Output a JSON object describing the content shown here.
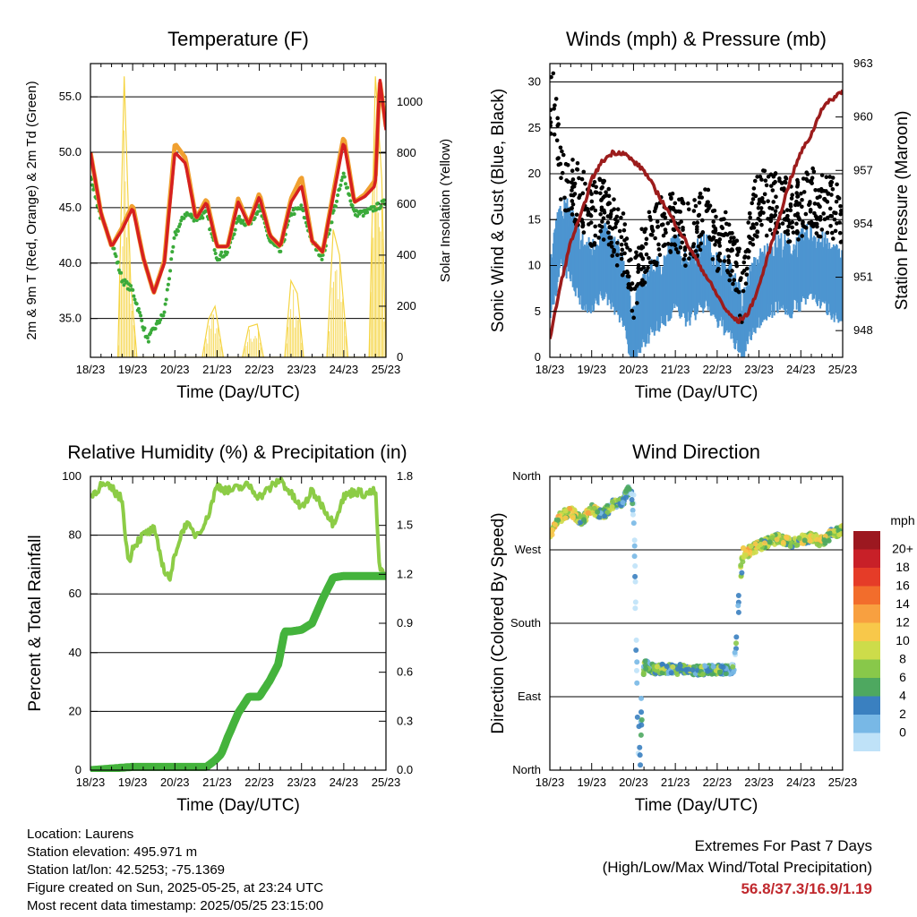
{
  "chart_data": [
    {
      "type": "line",
      "title": "Temperature (F)",
      "xlabel": "Time (Day/UTC)",
      "ylabel": "2m & 9m T (Red, Orange) & 2m Td (Green)",
      "ylabel_right": "Solar Insolation (Yellow)",
      "x_ticks": [
        "18/23",
        "19/23",
        "20/23",
        "21/23",
        "22/23",
        "23/23",
        "24/23",
        "25/23"
      ],
      "y_ticks": [
        "35.0",
        "40.0",
        "45.0",
        "50.0",
        "55.0"
      ],
      "y_tick_values": [
        35,
        40,
        45,
        50,
        55
      ],
      "ylim": [
        31.5,
        58
      ],
      "y2_ticks": [
        "0",
        "200",
        "400",
        "600",
        "800",
        "1000"
      ],
      "y2_tick_values": [
        0,
        200,
        400,
        600,
        800,
        1000
      ],
      "y2lim": [
        0,
        1150
      ],
      "xlim": [
        0,
        7
      ],
      "series": [
        {
          "color": "#d62020",
          "x": [
            0,
            0.25,
            0.5,
            0.75,
            1.0,
            1.25,
            1.5,
            1.75,
            2.0,
            2.25,
            2.5,
            2.75,
            3.0,
            3.25,
            3.5,
            3.75,
            4.0,
            4.25,
            4.5,
            4.75,
            5.0,
            5.25,
            5.5,
            5.75,
            6.0,
            6.25,
            6.5,
            6.75,
            6.85,
            7.0
          ],
          "values": [
            50,
            44.5,
            41.5,
            43,
            45,
            40.5,
            37.3,
            40,
            50,
            49,
            44,
            45.5,
            41.5,
            41.5,
            45.5,
            43.5,
            46,
            42.5,
            41.5,
            45.5,
            47,
            42,
            41,
            46,
            51,
            45.5,
            46,
            47,
            56.8,
            52
          ]
        },
        {
          "color": "#f0a030",
          "x": [
            0,
            0.25,
            0.5,
            0.75,
            1.0,
            1.25,
            1.5,
            1.75,
            2.0,
            2.25,
            2.5,
            2.75,
            3.0,
            3.25,
            3.5,
            3.75,
            4.0,
            4.25,
            4.5,
            4.75,
            5.0,
            5.25,
            5.5,
            5.75,
            6.0,
            6.25,
            6.5,
            6.75,
            6.85,
            7.0
          ],
          "values": [
            50,
            44.5,
            41.5,
            43.2,
            45.3,
            40.5,
            37.3,
            40.2,
            50.8,
            49.5,
            44,
            45.8,
            41.5,
            41.5,
            45.8,
            43.5,
            46.3,
            42.5,
            41.5,
            45.8,
            47.8,
            42,
            41,
            46.3,
            51.5,
            45.5,
            46.2,
            47.5,
            56.5,
            52.3
          ]
        },
        {
          "color": "#3aaa3a",
          "x": [
            0,
            0.25,
            0.5,
            0.75,
            1.0,
            1.2,
            1.35,
            1.5,
            1.75,
            2.0,
            2.25,
            2.5,
            2.75,
            3.0,
            3.25,
            3.5,
            3.75,
            4.0,
            4.25,
            4.5,
            4.75,
            5.0,
            5.25,
            5.5,
            5.75,
            6.0,
            6.25,
            6.5,
            6.75,
            7.0
          ],
          "values": [
            48,
            44,
            42,
            38.5,
            37.5,
            35,
            33,
            34,
            35.5,
            42.5,
            44.5,
            44,
            44.5,
            40.5,
            41,
            44,
            43.5,
            45,
            42,
            41,
            44.5,
            45,
            42,
            40.5,
            44.5,
            48,
            44.5,
            44.5,
            45,
            45.5
          ]
        },
        {
          "color": "#f5d442",
          "x": [
            0.65,
            0.8,
            0.95,
            1.1,
            2.65,
            2.8,
            2.95,
            3.15,
            3.6,
            3.75,
            3.95,
            4.1,
            4.6,
            4.75,
            4.9,
            5.05,
            5.6,
            5.75,
            5.9,
            6.1,
            6.6,
            6.75,
            6.9,
            7.0
          ],
          "values": [
            0,
            1100,
            300,
            0,
            0,
            150,
            200,
            0,
            0,
            120,
            130,
            0,
            0,
            300,
            250,
            0,
            0,
            500,
            400,
            0,
            0,
            1100,
            700,
            0
          ]
        }
      ]
    },
    {
      "type": "scatter",
      "title": "Winds (mph) & Pressure (mb)",
      "xlabel": "Time (Day/UTC)",
      "ylabel": "Sonic Wind & Gust (Blue, Black)",
      "ylabel_right": "Station Pressure (Maroon)",
      "x_ticks": [
        "18/23",
        "19/23",
        "20/23",
        "21/23",
        "22/23",
        "23/23",
        "24/23",
        "25/23"
      ],
      "y_ticks": [
        "0",
        "5",
        "10",
        "15",
        "20",
        "25",
        "30"
      ],
      "y_tick_values": [
        0,
        5,
        10,
        15,
        20,
        25,
        30
      ],
      "ylim": [
        0,
        32
      ],
      "y2_ticks": [
        "948",
        "951",
        "954",
        "957",
        "960",
        "963"
      ],
      "y2_tick_values": [
        948,
        951,
        954,
        957,
        960,
        963
      ],
      "y2lim": [
        946.5,
        963
      ],
      "xlim": [
        0,
        7
      ],
      "series": [
        {
          "color": "#4d95d0",
          "x": [
            0,
            0.25,
            0.5,
            0.75,
            1.0,
            1.25,
            1.5,
            1.75,
            1.9,
            2.0,
            2.1,
            2.25,
            2.5,
            2.75,
            3.0,
            3.25,
            3.5,
            3.75,
            4.0,
            4.25,
            4.5,
            4.6,
            4.75,
            5.0,
            5.25,
            5.5,
            5.75,
            6.0,
            6.25,
            6.5,
            6.75,
            7.0
          ],
          "values": [
            8,
            14,
            13,
            10,
            9,
            11,
            10,
            8,
            5,
            2,
            4,
            6,
            7,
            8,
            10,
            8,
            9,
            10,
            8,
            7,
            5,
            3,
            6,
            8,
            9,
            10,
            9,
            10,
            11,
            10,
            9,
            8
          ]
        },
        {
          "color": "#000000",
          "x": [
            0,
            0.05,
            0.25,
            0.5,
            0.75,
            1.0,
            1.25,
            1.5,
            1.75,
            1.9,
            2.0,
            2.1,
            2.25,
            2.5,
            2.75,
            3.0,
            3.25,
            3.5,
            3.75,
            4.0,
            4.25,
            4.5,
            4.6,
            4.75,
            5.0,
            5.25,
            5.5,
            5.75,
            6.0,
            6.25,
            6.5,
            6.75,
            7.0
          ],
          "values": [
            24,
            30,
            20,
            18,
            17,
            15,
            16,
            14,
            12,
            9,
            7,
            9,
            11,
            13,
            14,
            15,
            13,
            14,
            15,
            12,
            12,
            9,
            6,
            13,
            17,
            16,
            17,
            15,
            16,
            17,
            16,
            16,
            14
          ]
        },
        {
          "color": "#9c1c1c",
          "x": [
            0,
            0.25,
            0.5,
            0.75,
            1.0,
            1.25,
            1.5,
            1.75,
            2.0,
            2.25,
            2.5,
            2.75,
            3.0,
            3.25,
            3.5,
            3.75,
            4.0,
            4.25,
            4.5,
            4.75,
            5.0,
            5.25,
            5.5,
            5.75,
            6.0,
            6.25,
            6.5,
            6.75,
            7.0
          ],
          "values": [
            947.5,
            950.5,
            953,
            954.5,
            956.5,
            957.5,
            958,
            958,
            957.5,
            957,
            956,
            955,
            954,
            953,
            952,
            951,
            950,
            949,
            948.5,
            949,
            950.5,
            952.5,
            954.5,
            956.5,
            958,
            959,
            960.5,
            961,
            961.5
          ]
        }
      ]
    },
    {
      "type": "line",
      "title": "Relative Humidity (%) & Precipitation (in)",
      "xlabel": "Time (Day/UTC)",
      "ylabel": "Percent & Total Rainfall",
      "x_ticks": [
        "18/23",
        "19/23",
        "20/23",
        "21/23",
        "22/23",
        "23/23",
        "24/23",
        "25/23"
      ],
      "y_ticks": [
        "0",
        "20",
        "40",
        "60",
        "80",
        "100"
      ],
      "y_tick_values": [
        0,
        20,
        40,
        60,
        80,
        100
      ],
      "ylim": [
        0,
        100
      ],
      "y2_ticks": [
        "0.0",
        "0.3",
        "0.6",
        "0.9",
        "1.2",
        "1.5",
        "1.8"
      ],
      "y2_tick_values": [
        0,
        0.3,
        0.6,
        0.9,
        1.2,
        1.5,
        1.8
      ],
      "y2lim": [
        0,
        1.8
      ],
      "xlim": [
        0,
        7
      ],
      "series": [
        {
          "color": "#8ccc46",
          "x": [
            0,
            0.25,
            0.5,
            0.75,
            0.9,
            1.0,
            1.25,
            1.5,
            1.75,
            1.9,
            2.0,
            2.25,
            2.5,
            2.75,
            3.0,
            3.25,
            3.5,
            3.75,
            4.0,
            4.25,
            4.5,
            4.75,
            5.0,
            5.25,
            5.5,
            5.75,
            6.0,
            6.25,
            6.5,
            6.75,
            6.85,
            7.0
          ],
          "values": [
            93,
            97,
            96,
            92,
            70,
            76,
            80,
            82,
            68,
            65,
            74,
            84,
            80,
            85,
            97,
            95,
            96,
            97,
            93,
            96,
            99,
            94,
            89,
            95,
            90,
            84,
            93,
            95,
            94,
            95,
            68,
            66
          ]
        },
        {
          "color": "#44b33c",
          "x": [
            0,
            0.5,
            1.0,
            2.0,
            2.75,
            2.95,
            3.1,
            3.25,
            3.5,
            3.75,
            4.0,
            4.25,
            4.45,
            4.6,
            4.75,
            5.0,
            5.25,
            5.5,
            5.75,
            6.0,
            6.25,
            7.0
          ],
          "values": [
            0,
            0.01,
            0.02,
            0.02,
            0.02,
            0.06,
            0.1,
            0.2,
            0.35,
            0.45,
            0.45,
            0.55,
            0.65,
            0.85,
            0.85,
            0.86,
            0.9,
            1.05,
            1.18,
            1.19,
            1.19,
            1.19
          ]
        }
      ]
    },
    {
      "type": "scatter",
      "title": "Wind Direction",
      "xlabel": "Time (Day/UTC)",
      "ylabel": "Direction (Colored By Speed)",
      "x_ticks": [
        "18/23",
        "19/23",
        "20/23",
        "21/23",
        "22/23",
        "23/23",
        "24/23",
        "25/23"
      ],
      "y_ticks": [
        "North",
        "East",
        "South",
        "West",
        "North"
      ],
      "y_tick_values": [
        0,
        90,
        180,
        270,
        360
      ],
      "ylim": [
        0,
        360
      ],
      "xlim": [
        0,
        7
      ],
      "colorbar": {
        "title": "mph",
        "labels": [
          "20+",
          "18",
          "16",
          "14",
          "12",
          "10",
          "8",
          "6",
          "4",
          "2",
          "0"
        ],
        "colors": [
          "#9c1820",
          "#c82028",
          "#e53c28",
          "#f26d2c",
          "#f8a040",
          "#f8c84a",
          "#cddc4a",
          "#88c84a",
          "#4ea860",
          "#3a80c0",
          "#78b8e6",
          "#bfe2f8"
        ]
      },
      "series": [
        {
          "name": "direction",
          "x": [
            0,
            0.25,
            0.5,
            0.75,
            1.0,
            1.25,
            1.5,
            1.75,
            1.9,
            2.0,
            2.05,
            2.1,
            2.15,
            2.25,
            2.5,
            2.75,
            3.0,
            3.25,
            3.5,
            3.75,
            4.0,
            4.25,
            4.4,
            4.5,
            4.6,
            4.75,
            5.0,
            5.25,
            5.5,
            5.75,
            6.0,
            6.25,
            6.5,
            6.75,
            7.0
          ],
          "values": [
            290,
            310,
            318,
            305,
            320,
            312,
            325,
            330,
            345,
            340,
            200,
            60,
            20,
            130,
            123,
            125,
            123,
            125,
            122,
            123,
            124,
            122,
            125,
            190,
            260,
            268,
            275,
            280,
            285,
            278,
            282,
            285,
            280,
            290,
            295
          ],
          "speeds": [
            14,
            10,
            12,
            8,
            12,
            6,
            8,
            6,
            4,
            3,
            2,
            1,
            2,
            6,
            7,
            8,
            6,
            8,
            7,
            6,
            7,
            6,
            5,
            4,
            10,
            12,
            10,
            9,
            10,
            8,
            9,
            10,
            12,
            8,
            10
          ]
        }
      ]
    }
  ],
  "info": {
    "location": "Location: Laurens",
    "elevation": "Station elevation: 495.971 m",
    "latlon": "Station lat/lon: 42.5253; -75.1369",
    "created": "Figure created on Sun, 2025-05-25, at 23:24 UTC",
    "recent": "Most recent data timestamp: 2025/05/25 23:15:00"
  },
  "extremes": {
    "title": "Extremes For Past 7 Days",
    "subtitle": "(High/Low/Max Wind/Total Precipitation)",
    "values": "56.8/37.3/16.9/1.19"
  }
}
